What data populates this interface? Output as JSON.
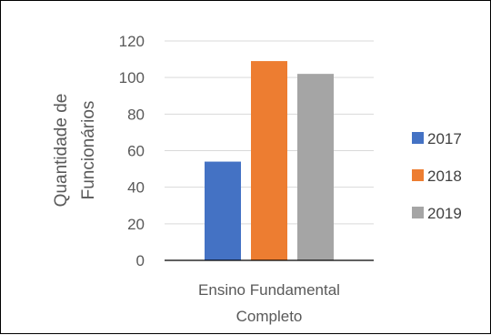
{
  "chart_data": {
    "type": "bar",
    "categories": [
      "Ensino Fundamental Completo"
    ],
    "category_label_lines": [
      "Ensino Fundamental",
      "Completo"
    ],
    "series": [
      {
        "name": "2017",
        "values": [
          54
        ],
        "color": "#4472C4"
      },
      {
        "name": "2018",
        "values": [
          109
        ],
        "color": "#ED7D31"
      },
      {
        "name": "2019",
        "values": [
          102
        ],
        "color": "#A5A5A5"
      }
    ],
    "ylabel_lines": [
      "Quantidade de",
      "Funcionários"
    ],
    "ylim": [
      0,
      120
    ],
    "yticks": [
      0,
      20,
      40,
      60,
      80,
      100,
      120
    ],
    "grid": true,
    "legend": "right"
  }
}
